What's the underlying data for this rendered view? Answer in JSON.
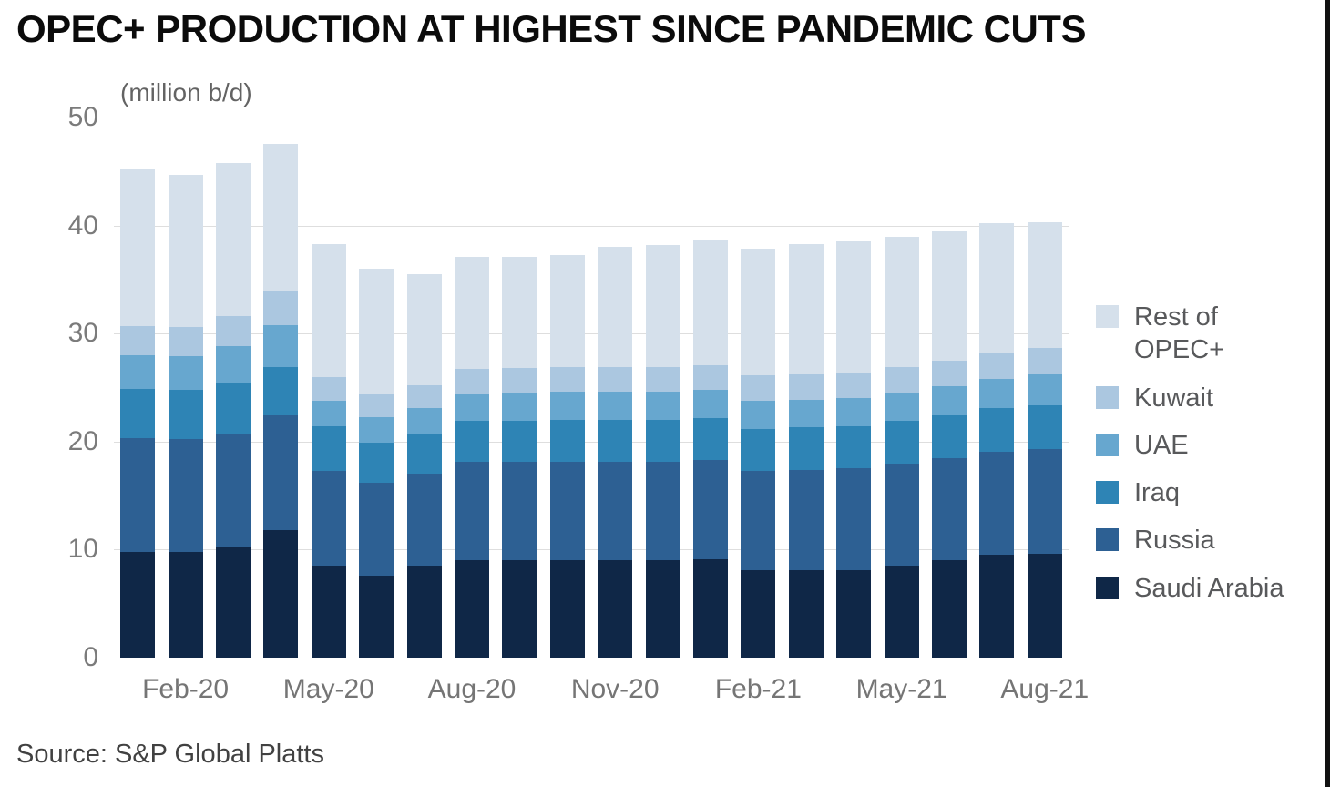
{
  "title": "OPEC+ PRODUCTION AT HIGHEST SINCE PANDEMIC CUTS",
  "source": "Source: S&P Global Platts",
  "chart_data": {
    "type": "bar",
    "stacked": true,
    "title": "OPEC+ PRODUCTION AT HIGHEST SINCE PANDEMIC CUTS",
    "unit_label": "(million b/d)",
    "xlabel": "",
    "ylabel": "million b/d",
    "ylim": [
      0,
      50
    ],
    "yticks": [
      0,
      10,
      20,
      30,
      40,
      50
    ],
    "grid": "horizontal",
    "legend_position": "right",
    "categories": [
      "Jan-20",
      "Feb-20",
      "Mar-20",
      "Apr-20",
      "May-20",
      "Jun-20",
      "Jul-20",
      "Aug-20",
      "Sep-20",
      "Oct-20",
      "Nov-20",
      "Dec-20",
      "Jan-21",
      "Feb-21",
      "Mar-21",
      "Apr-21",
      "May-21",
      "Jun-21",
      "Jul-21",
      "Aug-21"
    ],
    "x_tick_labels": [
      "Feb-20",
      "May-20",
      "Aug-20",
      "Nov-20",
      "Feb-21",
      "May-21",
      "Aug-21"
    ],
    "x_tick_indices": [
      1,
      4,
      7,
      10,
      13,
      16,
      19
    ],
    "series": [
      {
        "name": "Saudi Arabia",
        "color": "#0f2747",
        "values": [
          9.8,
          9.8,
          10.2,
          11.8,
          8.5,
          7.6,
          8.5,
          9.0,
          9.0,
          9.0,
          9.0,
          9.0,
          9.1,
          8.1,
          8.1,
          8.1,
          8.5,
          9.0,
          9.5,
          9.6
        ]
      },
      {
        "name": "Russia",
        "color": "#2d6093",
        "values": [
          10.5,
          10.4,
          10.5,
          10.6,
          8.8,
          8.6,
          8.5,
          9.1,
          9.1,
          9.1,
          9.1,
          9.1,
          9.2,
          9.2,
          9.3,
          9.4,
          9.5,
          9.5,
          9.6,
          9.7
        ]
      },
      {
        "name": "Iraq",
        "color": "#2e84b5",
        "values": [
          4.6,
          4.6,
          4.8,
          4.5,
          4.1,
          3.7,
          3.7,
          3.8,
          3.8,
          3.9,
          3.9,
          3.9,
          3.9,
          3.9,
          3.9,
          3.9,
          3.9,
          3.9,
          4.0,
          4.1
        ]
      },
      {
        "name": "UAE",
        "color": "#67a7cf",
        "values": [
          3.1,
          3.1,
          3.3,
          3.9,
          2.4,
          2.4,
          2.4,
          2.5,
          2.6,
          2.6,
          2.6,
          2.6,
          2.6,
          2.6,
          2.6,
          2.6,
          2.6,
          2.7,
          2.7,
          2.8
        ]
      },
      {
        "name": "Kuwait",
        "color": "#abc7e0",
        "values": [
          2.7,
          2.7,
          2.8,
          3.1,
          2.2,
          2.1,
          2.1,
          2.3,
          2.3,
          2.3,
          2.3,
          2.3,
          2.3,
          2.3,
          2.3,
          2.3,
          2.4,
          2.4,
          2.4,
          2.5
        ]
      },
      {
        "name": "Rest of OPEC+",
        "color": "#d5e0eb",
        "values": [
          14.5,
          14.1,
          14.2,
          13.7,
          12.3,
          11.6,
          10.3,
          10.4,
          10.3,
          10.4,
          11.1,
          11.3,
          11.6,
          11.8,
          12.1,
          12.2,
          12.1,
          12.0,
          12.0,
          11.6
        ]
      }
    ],
    "legend_order_top_to_bottom": [
      "Rest of OPEC+",
      "Kuwait",
      "UAE",
      "Iraq",
      "Russia",
      "Saudi Arabia"
    ]
  }
}
